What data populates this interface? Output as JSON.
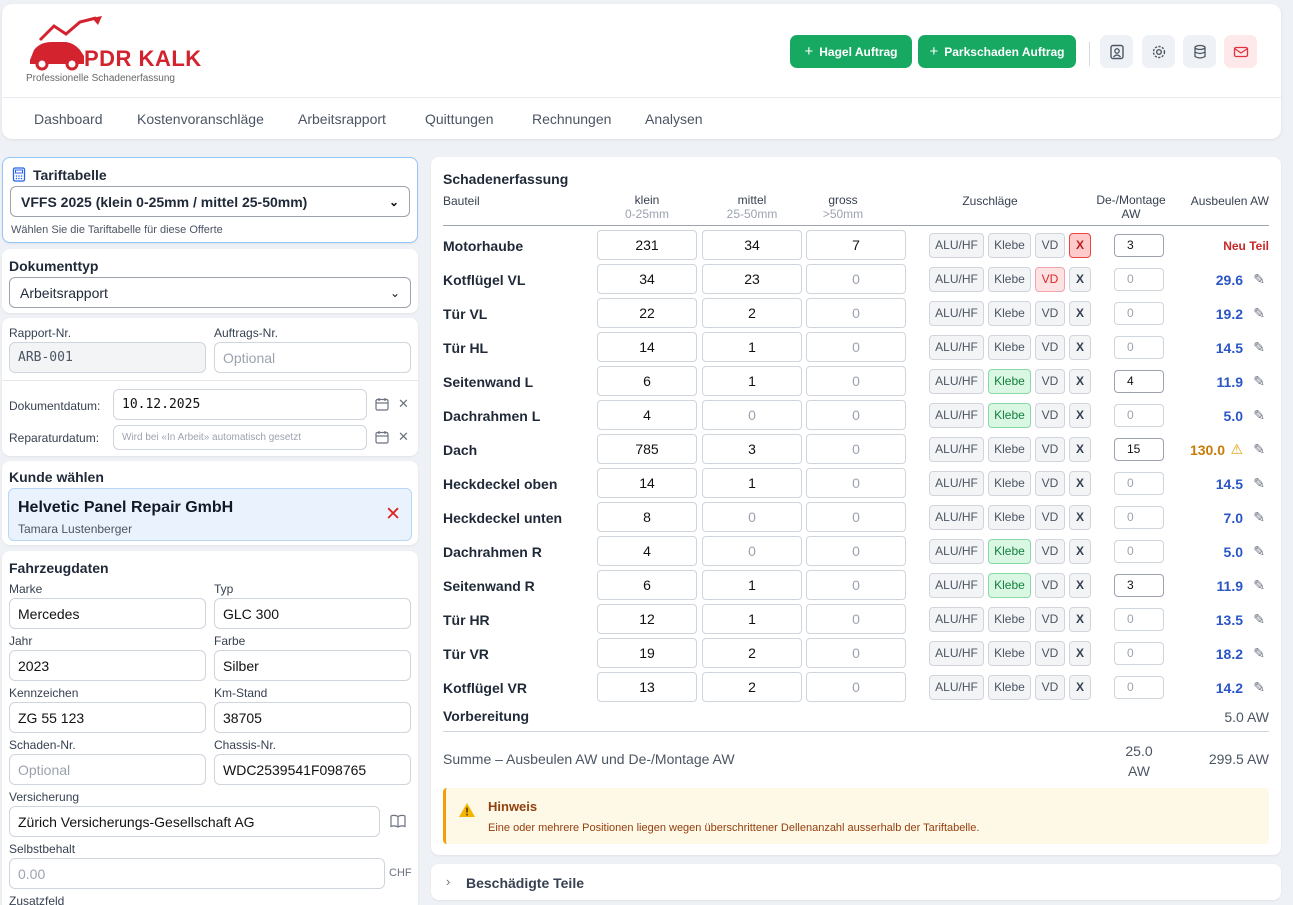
{
  "brand": {
    "name": "PDR KALK",
    "tagline": "Professionelle Schadenerfassung"
  },
  "actions": {
    "hail_label": "Hagel Auftrag",
    "park_label": "Parkschaden Auftrag"
  },
  "nav": [
    "Dashboard",
    "Kostenvoranschläge",
    "Arbeitsrapport",
    "Quittungen",
    "Rechnungen",
    "Analysen"
  ],
  "tariff": {
    "title": "Tariftabelle",
    "selected": "VFFS 2025 (klein 0-25mm / mittel 25-50mm)",
    "hint": "Wählen Sie die Tariftabelle für diese Offerte"
  },
  "doctype": {
    "title": "Dokumenttyp",
    "selected": "Arbeitsrapport"
  },
  "report": {
    "report_nr_label": "Rapport-Nr.",
    "report_nr": "ARB-001",
    "order_nr_label": "Auftrags-Nr.",
    "order_nr_placeholder": "Optional",
    "doc_date_label": "Dokumentdatum:",
    "doc_date": "10.12.2025",
    "repair_date_label": "Reparaturdatum:",
    "repair_date_placeholder": "Wird bei «In Arbeit» automatisch gesetzt"
  },
  "customer": {
    "title": "Kunde wählen",
    "company": "Helvetic Panel Repair GmbH",
    "contact": "Tamara Lustenberger"
  },
  "vehicle": {
    "title": "Fahrzeugdaten",
    "brand_label": "Marke",
    "brand": "Mercedes",
    "type_label": "Typ",
    "type": "GLC 300",
    "year_label": "Jahr",
    "year": "2023",
    "color_label": "Farbe",
    "color": "Silber",
    "plate_label": "Kennzeichen",
    "plate": "ZG 55 123",
    "km_label": "Km-Stand",
    "km": "38705",
    "damage_nr_label": "Schaden-Nr.",
    "damage_nr_placeholder": "Optional",
    "chassis_label": "Chassis-Nr.",
    "chassis": "WDC2539541F098765",
    "insurance_label": "Versicherung",
    "insurance": "Zürich Versicherungs-Gesellschaft AG",
    "deductible_label": "Selbstbehalt",
    "deductible_placeholder": "0.00",
    "deductible_unit": "CHF",
    "extra_label": "Zusatzfeld"
  },
  "table": {
    "title": "Schadenerfassung",
    "headers": {
      "part": "Bauteil",
      "small": "klein",
      "small_sub": "0-25mm",
      "medium": "mittel",
      "medium_sub": "25-50mm",
      "large": "gross",
      "large_sub": ">50mm",
      "surcharges": "Zuschläge",
      "mount": "De-/Montage",
      "mount_unit": "AW",
      "aw": "Ausbeulen AW"
    },
    "tag_labels": {
      "alu": "ALU/HF",
      "klebe": "Klebe",
      "vd": "VD",
      "x": "X"
    },
    "rows": [
      {
        "part": "Motorhaube",
        "small": "231",
        "medium": "34",
        "large": "7",
        "klebe": false,
        "vd": false,
        "xred": true,
        "mount": "3",
        "aw": "Neu Teil"
      },
      {
        "part": "Kotflügel VL",
        "small": "34",
        "medium": "23",
        "large": "0",
        "klebe": false,
        "vd": true,
        "xred": false,
        "mount": "0",
        "aw": "29.6"
      },
      {
        "part": "Tür VL",
        "small": "22",
        "medium": "2",
        "large": "0",
        "klebe": false,
        "vd": false,
        "xred": false,
        "mount": "0",
        "aw": "19.2"
      },
      {
        "part": "Tür HL",
        "small": "14",
        "medium": "1",
        "large": "0",
        "klebe": false,
        "vd": false,
        "xred": false,
        "mount": "0",
        "aw": "14.5"
      },
      {
        "part": "Seitenwand L",
        "small": "6",
        "medium": "1",
        "large": "0",
        "klebe": true,
        "vd": false,
        "xred": false,
        "mount": "4",
        "aw": "11.9"
      },
      {
        "part": "Dachrahmen L",
        "small": "4",
        "medium": "0",
        "large": "0",
        "klebe": true,
        "vd": false,
        "xred": false,
        "mount": "0",
        "aw": "5.0"
      },
      {
        "part": "Dach",
        "small": "785",
        "medium": "3",
        "large": "0",
        "klebe": false,
        "vd": false,
        "xred": false,
        "mount": "15",
        "aw": "130.0",
        "warn": true
      },
      {
        "part": "Heckdeckel oben",
        "small": "14",
        "medium": "1",
        "large": "0",
        "klebe": false,
        "vd": false,
        "xred": false,
        "mount": "0",
        "aw": "14.5"
      },
      {
        "part": "Heckdeckel unten",
        "small": "8",
        "medium": "0",
        "large": "0",
        "klebe": false,
        "vd": false,
        "xred": false,
        "mount": "0",
        "aw": "7.0"
      },
      {
        "part": "Dachrahmen R",
        "small": "4",
        "medium": "0",
        "large": "0",
        "klebe": true,
        "vd": false,
        "xred": false,
        "mount": "0",
        "aw": "5.0"
      },
      {
        "part": "Seitenwand R",
        "small": "6",
        "medium": "1",
        "large": "0",
        "klebe": true,
        "vd": false,
        "xred": false,
        "mount": "3",
        "aw": "11.9"
      },
      {
        "part": "Tür HR",
        "small": "12",
        "medium": "1",
        "large": "0",
        "klebe": false,
        "vd": false,
        "xred": false,
        "mount": "0",
        "aw": "13.5"
      },
      {
        "part": "Tür VR",
        "small": "19",
        "medium": "2",
        "large": "0",
        "klebe": false,
        "vd": false,
        "xred": false,
        "mount": "0",
        "aw": "18.2"
      },
      {
        "part": "Kotflügel VR",
        "small": "13",
        "medium": "2",
        "large": "0",
        "klebe": false,
        "vd": false,
        "xred": false,
        "mount": "0",
        "aw": "14.2"
      }
    ],
    "prep_label": "Vorbereitung",
    "prep_value": "5.0 AW",
    "sum_label": "Summe – Ausbeulen AW und De-/Montage AW",
    "sum_mount": "25.0",
    "sum_mount_unit": "AW",
    "sum_total": "299.5 AW"
  },
  "hint": {
    "title": "Hinweis",
    "text": "Eine oder mehrere Positionen liegen wegen überschrittener Dellenanzahl ausserhalb der Tariftabelle."
  },
  "damaged_parts": {
    "label": "Beschädigte Teile"
  }
}
